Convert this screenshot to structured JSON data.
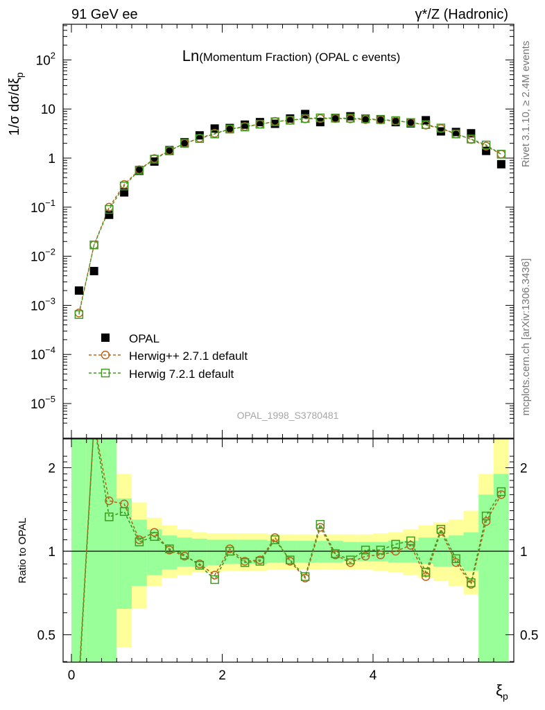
{
  "header": {
    "left": "91 GeV ee",
    "right": "γ*/Z (Hadronic)"
  },
  "side_labels": {
    "rivet": "Rivet 3.1.10, ≥ 2.4M events",
    "mcplots": "mcplots.cern.ch [arXiv:1306.3436]"
  },
  "chart_data": {
    "type": "scatter",
    "title_main": "Ln",
    "title_rest": "(Momentum Fraction) (OPAL c events)",
    "analysis_id": "OPAL_1998_S3780481",
    "ylabel": "1/σ dσ/dξ",
    "ylabel_sub": "p",
    "xlabel": "ξ",
    "xlabel_sub": "p",
    "ratio_ylabel": "Ratio to OPAL",
    "xlim": [
      -0.1,
      5.8
    ],
    "ylim_log": [
      2.5e-06,
      500
    ],
    "ratio_ylim": [
      0.35,
      2.3
    ],
    "y_scale": "log",
    "x_ticks": [
      "0",
      "2",
      "4"
    ],
    "y_ticks": [
      {
        "base": "10",
        "exp": "2"
      },
      {
        "base": "10",
        "exp": ""
      },
      {
        "base": "1",
        "exp": ""
      },
      {
        "base": "10",
        "exp": "−1"
      },
      {
        "base": "10",
        "exp": "−2"
      },
      {
        "base": "10",
        "exp": "−3"
      },
      {
        "base": "10",
        "exp": "−4"
      },
      {
        "base": "10",
        "exp": "−5"
      }
    ],
    "ratio_ticks": [
      "2",
      "1",
      "0.5"
    ],
    "legend_position": "lower-left",
    "x": [
      0.1,
      0.3,
      0.5,
      0.7,
      0.9,
      1.1,
      1.3,
      1.5,
      1.7,
      1.9,
      2.1,
      2.3,
      2.5,
      2.7,
      2.9,
      3.1,
      3.3,
      3.5,
      3.7,
      3.9,
      4.1,
      4.3,
      4.5,
      4.7,
      4.9,
      5.1,
      5.3,
      5.5,
      5.7
    ],
    "series": [
      {
        "name": "OPAL",
        "color": "#000000",
        "marker": "filled-square",
        "values": [
          0.002,
          0.005,
          0.07,
          0.2,
          0.55,
          0.85,
          1.45,
          2.1,
          2.9,
          4.0,
          4.1,
          4.8,
          5.4,
          5.0,
          6.4,
          7.9,
          5.4,
          6.6,
          7.1,
          6.4,
          6.2,
          5.4,
          5.1,
          5.9,
          3.5,
          3.4,
          3.2,
          1.4,
          0.75
        ]
      },
      {
        "name": "Herwig++ 2.7.1 default",
        "color": "#b5651d",
        "marker": "open-circle",
        "values": [
          0.0007,
          0.017,
          0.1,
          0.29,
          0.58,
          0.98,
          1.42,
          2.0,
          2.55,
          3.2,
          3.9,
          4.4,
          4.9,
          5.6,
          5.9,
          6.3,
          6.4,
          6.4,
          6.3,
          6.1,
          6.0,
          5.7,
          5.3,
          4.7,
          4.0,
          3.1,
          2.4,
          1.75,
          1.2
        ]
      },
      {
        "name": "Herwig 7.2.1 default",
        "color": "#3e9a1e",
        "marker": "open-square",
        "values": [
          0.00065,
          0.017,
          0.09,
          0.27,
          0.57,
          0.95,
          1.4,
          2.0,
          2.5,
          3.1,
          3.9,
          4.3,
          4.9,
          5.5,
          5.9,
          6.4,
          6.6,
          6.5,
          6.5,
          6.3,
          6.1,
          5.8,
          5.3,
          4.8,
          4.1,
          3.1,
          2.45,
          1.85,
          1.2
        ]
      }
    ],
    "ratio_series": [
      {
        "name": "Herwig++ 2.7.1 default",
        "values": [
          0.35,
          2.9,
          1.52,
          1.48,
          1.1,
          1.17,
          1.01,
          0.96,
          0.9,
          0.82,
          1.02,
          0.92,
          0.93,
          1.12,
          0.92,
          0.8,
          1.22,
          0.97,
          0.91,
          0.96,
          0.97,
          1.0,
          1.05,
          0.81,
          1.18,
          0.91,
          0.76,
          1.28,
          1.6
        ]
      },
      {
        "name": "Herwig 7.2.1 default",
        "values": [
          0.33,
          2.9,
          1.33,
          1.39,
          1.08,
          1.13,
          1.02,
          0.97,
          0.89,
          0.79,
          1.0,
          0.91,
          0.92,
          1.1,
          0.93,
          0.81,
          1.25,
          0.98,
          0.93,
          1.01,
          1.01,
          1.06,
          1.09,
          0.84,
          1.2,
          0.94,
          0.77,
          1.34,
          1.64
        ]
      }
    ],
    "band_inner": [
      [
        0.2,
        3.0
      ],
      [
        0.2,
        3.0
      ],
      [
        0.2,
        3.0
      ],
      [
        0.62,
        1.55
      ],
      [
        0.75,
        1.3
      ],
      [
        0.82,
        1.2
      ],
      [
        0.86,
        1.14
      ],
      [
        0.88,
        1.12
      ],
      [
        0.88,
        1.11
      ],
      [
        0.89,
        1.1
      ],
      [
        0.9,
        1.1
      ],
      [
        0.9,
        1.1
      ],
      [
        0.9,
        1.1
      ],
      [
        0.91,
        1.09
      ],
      [
        0.91,
        1.09
      ],
      [
        0.91,
        1.09
      ],
      [
        0.91,
        1.09
      ],
      [
        0.91,
        1.09
      ],
      [
        0.92,
        1.08
      ],
      [
        0.92,
        1.08
      ],
      [
        0.92,
        1.08
      ],
      [
        0.91,
        1.09
      ],
      [
        0.91,
        1.09
      ],
      [
        0.9,
        1.12
      ],
      [
        0.88,
        1.12
      ],
      [
        0.88,
        1.14
      ],
      [
        0.85,
        1.17
      ],
      [
        0.3,
        1.6
      ],
      [
        0.3,
        1.9
      ]
    ],
    "band_outer": [
      [
        0.2,
        3.0
      ],
      [
        0.2,
        3.0
      ],
      [
        0.2,
        3.0
      ],
      [
        0.45,
        1.9
      ],
      [
        0.62,
        1.5
      ],
      [
        0.75,
        1.32
      ],
      [
        0.8,
        1.24
      ],
      [
        0.82,
        1.2
      ],
      [
        0.84,
        1.17
      ],
      [
        0.84,
        1.16
      ],
      [
        0.85,
        1.16
      ],
      [
        0.85,
        1.16
      ],
      [
        0.85,
        1.16
      ],
      [
        0.86,
        1.15
      ],
      [
        0.86,
        1.15
      ],
      [
        0.86,
        1.15
      ],
      [
        0.86,
        1.15
      ],
      [
        0.86,
        1.15
      ],
      [
        0.86,
        1.15
      ],
      [
        0.86,
        1.15
      ],
      [
        0.85,
        1.16
      ],
      [
        0.84,
        1.17
      ],
      [
        0.82,
        1.2
      ],
      [
        0.8,
        1.24
      ],
      [
        0.78,
        1.27
      ],
      [
        0.75,
        1.3
      ],
      [
        0.7,
        1.4
      ],
      [
        0.3,
        1.9
      ],
      [
        0.3,
        3.0
      ]
    ]
  }
}
